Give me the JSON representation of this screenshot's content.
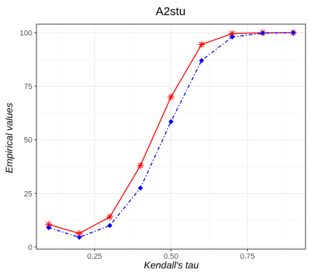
{
  "chart_data": {
    "type": "line",
    "title": "A2stu",
    "xlabel": "Kendall's tau",
    "ylabel": "Empirical values",
    "xlim": [
      0.06,
      0.94
    ],
    "ylim": [
      -1,
      104
    ],
    "x_ticks": [
      0.25,
      0.5,
      0.75
    ],
    "x_tick_labels": [
      "0.25",
      "0.50",
      "0.75"
    ],
    "y_ticks": [
      0,
      25,
      50,
      75,
      100
    ],
    "y_tick_labels": [
      "0",
      "25",
      "50",
      "75",
      "100"
    ],
    "grid": true,
    "x": [
      0.1,
      0.2,
      0.3,
      0.4,
      0.5,
      0.6,
      0.7,
      0.8,
      0.9
    ],
    "series": [
      {
        "color": "#ff0000",
        "line_style": "solid",
        "marker": "asterisk",
        "values": [
          10.5,
          6.3,
          14,
          38,
          70,
          94.5,
          99.6,
          100,
          100
        ]
      },
      {
        "color": "#0000ff",
        "line_style": "dashdot",
        "marker": "diamond",
        "values": [
          9,
          4.5,
          10,
          27.5,
          58.5,
          87,
          98,
          99.8,
          100
        ]
      }
    ]
  }
}
